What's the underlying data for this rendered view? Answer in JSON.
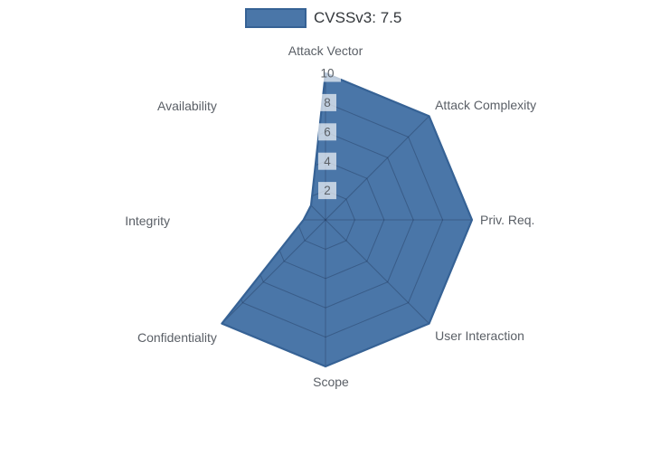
{
  "legend": {
    "label": "CVSSv3: 7.5"
  },
  "colors": {
    "fill": "#4a76a8",
    "line": "#366295",
    "grid": "rgba(15,25,55,0.28)",
    "axis_label_text": "#5a5f66",
    "tick_text": "#5b6066",
    "tick_box_bg": "rgba(255,255,255,0.66)",
    "legend_text": "#33373b",
    "background": "#ffffff"
  },
  "chart_data": {
    "type": "radar",
    "title": "",
    "categories": [
      "Attack Vector",
      "Attack Complexity",
      "Priv. Req.",
      "User Interaction",
      "Scope",
      "Confidentiality",
      "Integrity",
      "Availability"
    ],
    "series": [
      {
        "name": "CVSSv3: 7.5",
        "values": [
          10,
          10,
          10,
          10,
          10,
          10,
          1.5,
          1.4
        ]
      }
    ],
    "radial_ticks": [
      2,
      4,
      6,
      8,
      10
    ],
    "radial_range": [
      0,
      10
    ],
    "grid_shape": "polygon",
    "first_axis": "top",
    "direction": "clockwise",
    "legend_position": "top-center",
    "gridlines_visible_outside_fill": false
  }
}
